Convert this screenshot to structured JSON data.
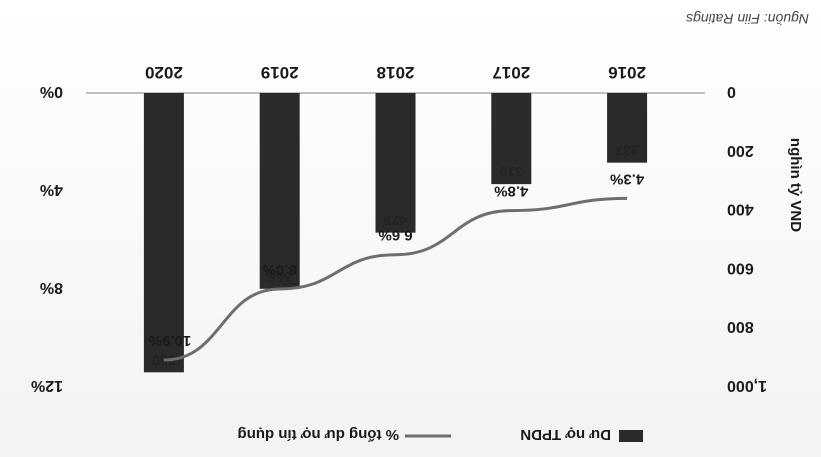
{
  "source": "Nguồn: Fiin Ratings",
  "chart_data": {
    "type": "bar",
    "categories": [
      "2016",
      "2017",
      "2018",
      "2019",
      "2020"
    ],
    "series": [
      {
        "name": "Dư nợ TPDN",
        "type": "bar",
        "axis": "left",
        "values": [
          237,
          310,
          475,
          666,
          950
        ],
        "color": "#2a2a2a"
      },
      {
        "name": "% tổng dư nợ tín dụng",
        "type": "line",
        "axis": "right",
        "values": [
          4.3,
          4.8,
          6.6,
          8.0,
          10.9
        ],
        "color": "#6e6e6e"
      }
    ],
    "bar_value_labels": [
      "237",
      "310",
      "475",
      "666",
      "950"
    ],
    "line_value_labels": [
      "4.3%",
      "4.8%",
      "6.6%",
      "8.0%",
      "10.9%"
    ],
    "ylabel": "nghìn tỷ VND",
    "ylim": [
      0,
      1000
    ],
    "yticks": [
      "0",
      "200",
      "400",
      "600",
      "800",
      "1,000"
    ],
    "y2lim": [
      0,
      12
    ],
    "y2ticks": [
      "0%",
      "4%",
      "8%",
      "12%"
    ],
    "legend_position": "bottom",
    "orientation_note": "image rotated 180 degrees"
  }
}
